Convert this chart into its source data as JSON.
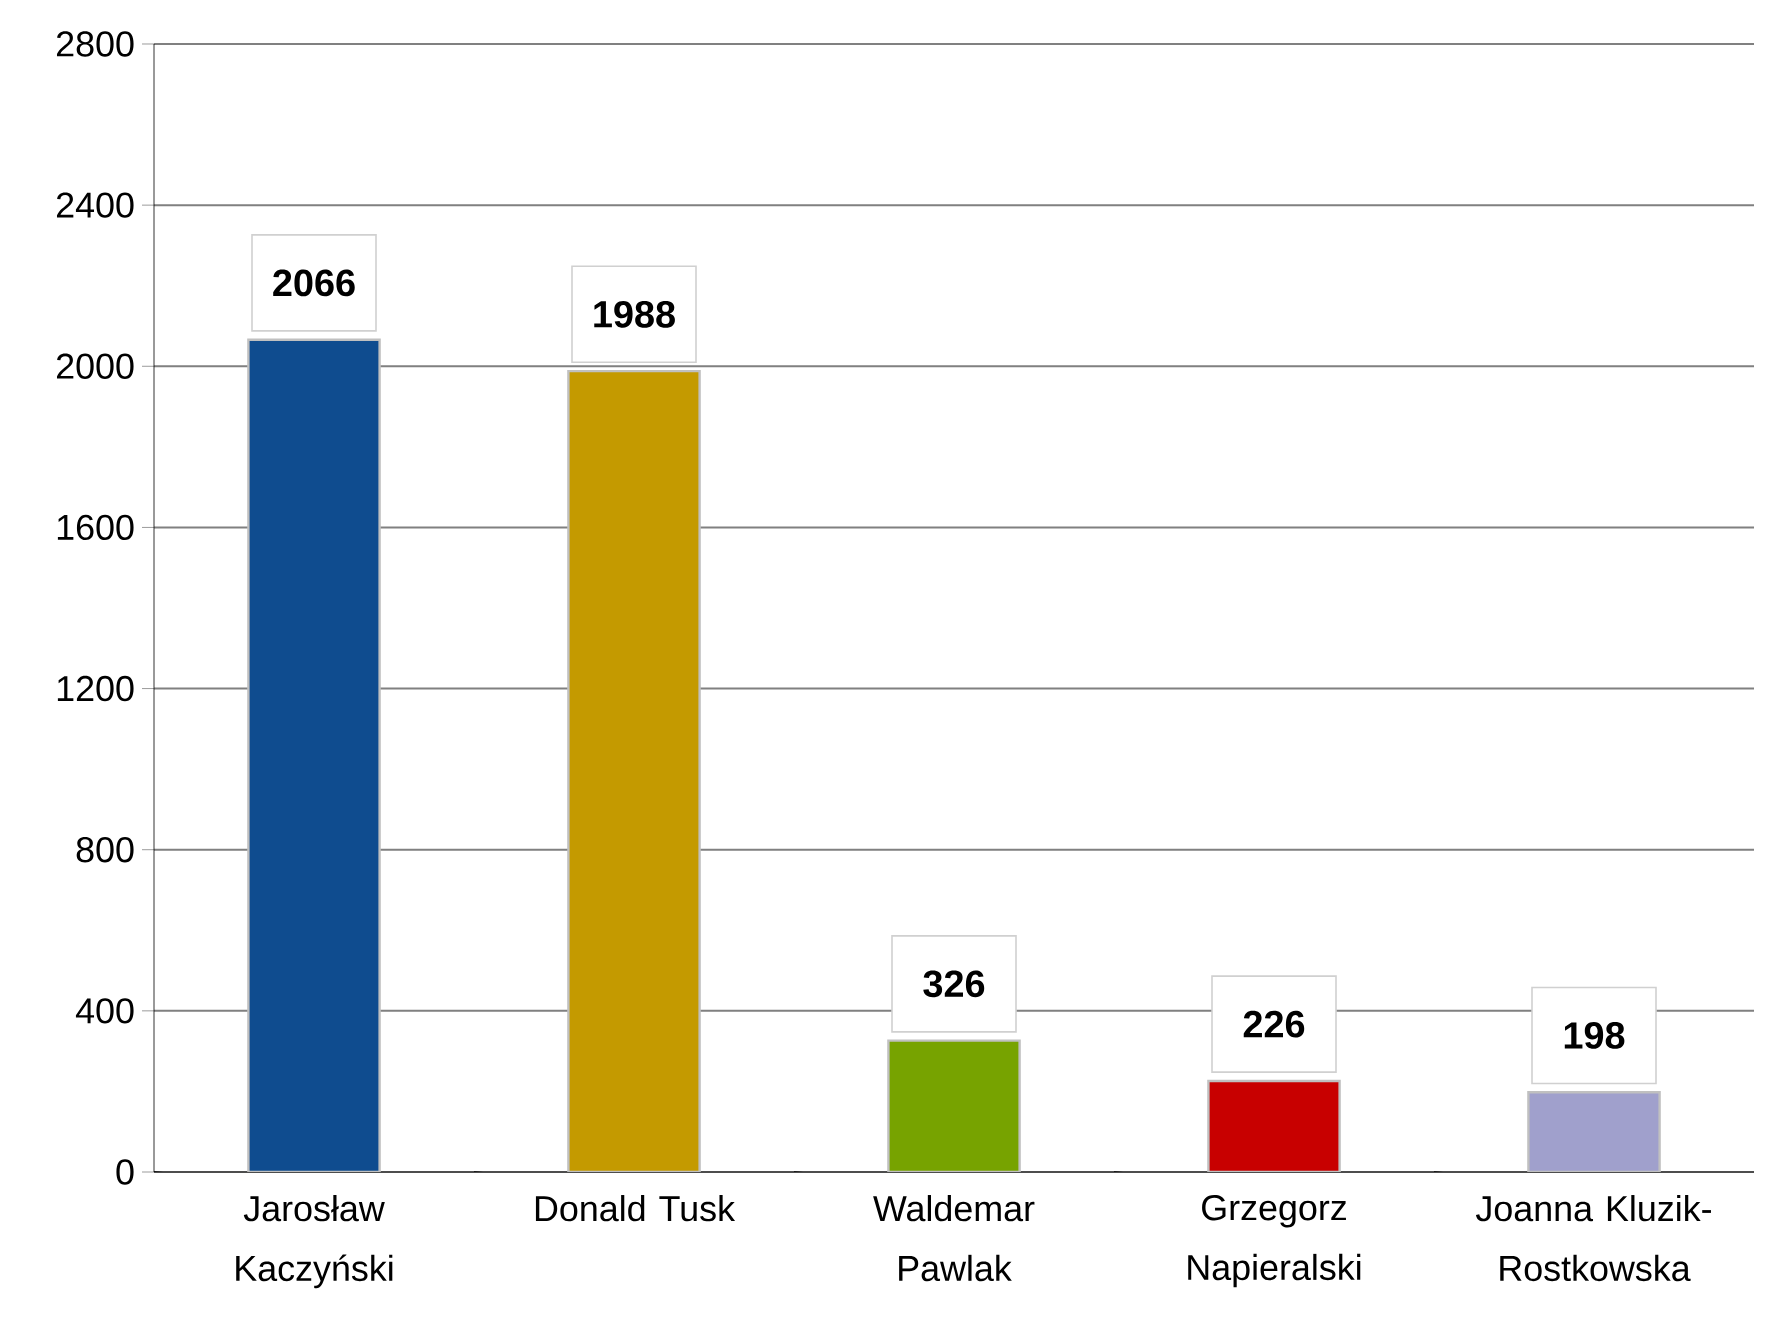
{
  "chart_data": {
    "type": "bar",
    "categories": [
      "Jarosław Kaczyński",
      "Donald Tusk",
      "Waldemar Pawlak",
      "Grzegorz Napieralski",
      "Joanna Kluzik-Rostkowska"
    ],
    "values": [
      2066,
      1988,
      326,
      226,
      198
    ],
    "colors": [
      "#0F4C8F",
      "#C49A00",
      "#77A300",
      "#C80000",
      "#A0A0CC"
    ],
    "ylim": [
      0,
      2800
    ],
    "yticks": [
      0,
      400,
      800,
      1200,
      1600,
      2000,
      2400,
      2800
    ],
    "grid": "y",
    "data_labels": true
  }
}
